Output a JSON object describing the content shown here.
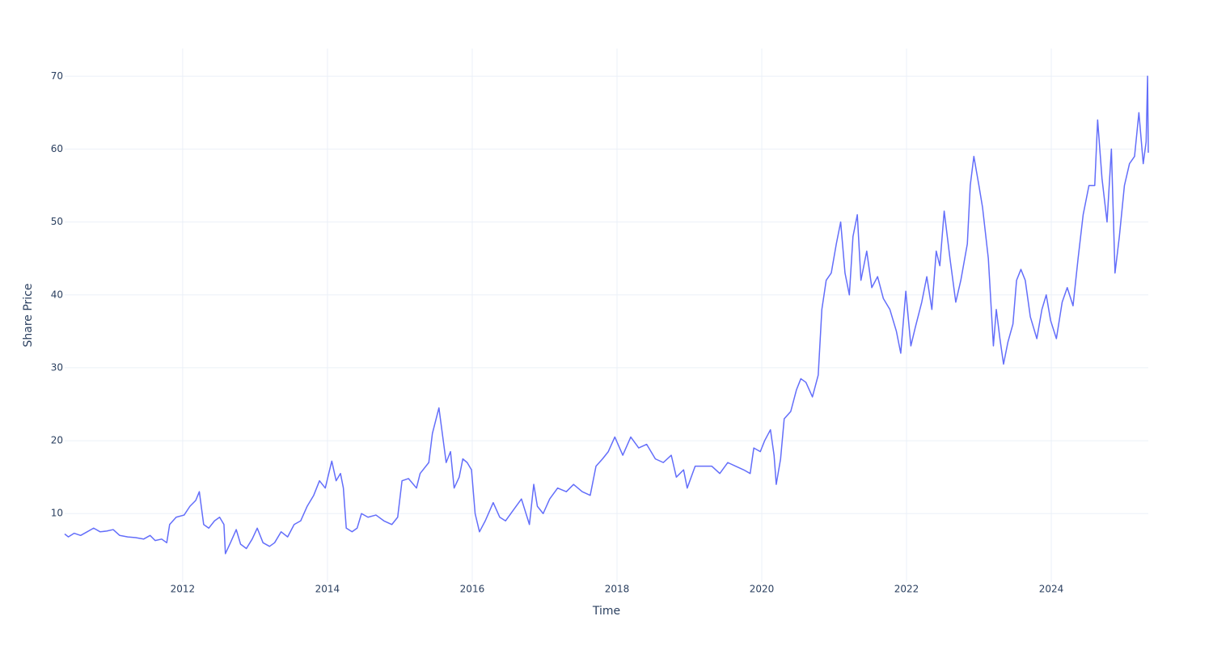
{
  "chart_data": {
    "type": "line",
    "x_label": "Time",
    "y_label": "Share Price",
    "color": "#636efa",
    "grid": true,
    "xlim": [
      2010.37,
      2025.34
    ],
    "ylim": [
      0.6,
      73.8
    ],
    "xticks": [
      2012,
      2014,
      2016,
      2018,
      2020,
      2022,
      2024
    ],
    "yticks": [
      10,
      20,
      30,
      40,
      50,
      60,
      70
    ],
    "x": [
      2010.37,
      2010.42,
      2010.5,
      2010.59,
      2010.68,
      2010.77,
      2010.86,
      2010.95,
      2011.04,
      2011.13,
      2011.24,
      2011.35,
      2011.46,
      2011.55,
      2011.62,
      2011.71,
      2011.78,
      2011.82,
      2011.91,
      2012.02,
      2012.1,
      2012.18,
      2012.23,
      2012.29,
      2012.36,
      2012.44,
      2012.51,
      2012.57,
      2012.59,
      2012.66,
      2012.74,
      2012.8,
      2012.88,
      2012.96,
      2013.03,
      2013.11,
      2013.2,
      2013.27,
      2013.36,
      2013.45,
      2013.54,
      2013.63,
      2013.72,
      2013.81,
      2013.89,
      2013.97,
      2014.03,
      2014.06,
      2014.12,
      2014.18,
      2014.22,
      2014.26,
      2014.34,
      2014.41,
      2014.47,
      2014.56,
      2014.67,
      2014.78,
      2014.89,
      2014.97,
      2015.03,
      2015.12,
      2015.23,
      2015.28,
      2015.4,
      2015.45,
      2015.54,
      2015.6,
      2015.64,
      2015.7,
      2015.75,
      2015.82,
      2015.87,
      2015.93,
      2015.99,
      2016.04,
      2016.1,
      2016.18,
      2016.29,
      2016.38,
      2016.46,
      2016.57,
      2016.68,
      2016.79,
      2016.85,
      2016.9,
      2016.98,
      2017.07,
      2017.18,
      2017.3,
      2017.4,
      2017.52,
      2017.63,
      2017.71,
      2017.8,
      2017.88,
      2017.97,
      2018.08,
      2018.19,
      2018.3,
      2018.41,
      2018.53,
      2018.64,
      2018.75,
      2018.82,
      2018.92,
      2018.97,
      2019.08,
      2019.2,
      2019.31,
      2019.42,
      2019.53,
      2019.64,
      2019.75,
      2019.84,
      2019.89,
      2019.98,
      2020.04,
      2020.12,
      2020.17,
      2020.2,
      2020.26,
      2020.31,
      2020.4,
      2020.48,
      2020.54,
      2020.61,
      2020.7,
      2020.78,
      2020.83,
      2020.89,
      2020.96,
      2021.03,
      2021.09,
      2021.15,
      2021.21,
      2021.26,
      2021.32,
      2021.37,
      2021.45,
      2021.52,
      2021.6,
      2021.68,
      2021.77,
      2021.86,
      2021.92,
      2021.99,
      2022.06,
      2022.12,
      2022.21,
      2022.28,
      2022.35,
      2022.41,
      2022.46,
      2022.52,
      2022.6,
      2022.68,
      2022.75,
      2022.84,
      2022.88,
      2022.93,
      2023.0,
      2023.05,
      2023.13,
      2023.2,
      2023.24,
      2023.29,
      2023.34,
      2023.4,
      2023.47,
      2023.52,
      2023.58,
      2023.64,
      2023.71,
      2023.8,
      2023.87,
      2023.93,
      2023.99,
      2024.07,
      2024.15,
      2024.22,
      2024.3,
      2024.37,
      2024.44,
      2024.52,
      2024.6,
      2024.64,
      2024.7,
      2024.77,
      2024.83,
      2024.88,
      2024.94,
      2025.01,
      2025.08,
      2025.15,
      2025.21,
      2025.27,
      2025.31,
      2025.33,
      2025.34
    ],
    "values": [
      7.2,
      6.8,
      7.3,
      7.0,
      7.5,
      8.0,
      7.5,
      7.6,
      7.8,
      7.0,
      6.8,
      6.7,
      6.5,
      7.0,
      6.3,
      6.5,
      6.0,
      8.5,
      9.5,
      9.8,
      11.0,
      11.8,
      13.0,
      8.5,
      8.0,
      9.0,
      9.5,
      8.5,
      4.5,
      6.0,
      7.8,
      5.8,
      5.2,
      6.5,
      8.0,
      6.0,
      5.5,
      6.0,
      7.5,
      6.8,
      8.5,
      9.0,
      11.0,
      12.5,
      14.5,
      13.5,
      16.0,
      17.2,
      14.5,
      15.5,
      13.5,
      8.0,
      7.5,
      8.0,
      10.0,
      9.5,
      9.8,
      9.0,
      8.5,
      9.5,
      14.5,
      14.8,
      13.5,
      15.5,
      17.0,
      21.0,
      24.5,
      20.0,
      17.0,
      18.5,
      13.5,
      15.0,
      17.5,
      17.0,
      16.0,
      10.0,
      7.5,
      9.0,
      11.5,
      9.5,
      9.0,
      10.5,
      12.0,
      8.5,
      14.0,
      11.0,
      10.0,
      12.0,
      13.5,
      13.0,
      14.0,
      13.0,
      12.5,
      16.5,
      17.5,
      18.5,
      20.5,
      18.0,
      20.5,
      19.0,
      19.5,
      17.5,
      17.0,
      18.0,
      15.0,
      16.0,
      13.5,
      16.5,
      16.5,
      16.5,
      15.5,
      17.0,
      16.5,
      16.0,
      15.5,
      19.0,
      18.5,
      20.0,
      21.5,
      18.0,
      14.0,
      17.5,
      23.0,
      24.0,
      27.0,
      28.5,
      28.0,
      26.0,
      29.0,
      38.0,
      42.0,
      43.0,
      47.0,
      50.0,
      43.0,
      40.0,
      48.0,
      51.0,
      42.0,
      46.0,
      41.0,
      42.5,
      39.5,
      38.0,
      35.0,
      32.0,
      40.5,
      33.0,
      35.5,
      39.0,
      42.5,
      38.0,
      46.0,
      44.0,
      51.5,
      45.0,
      39.0,
      42.0,
      47.0,
      55.0,
      59.0,
      55.0,
      52.0,
      45.0,
      33.0,
      38.0,
      34.0,
      30.5,
      33.5,
      36.0,
      42.0,
      43.5,
      42.0,
      37.0,
      34.0,
      38.0,
      40.0,
      36.5,
      34.0,
      39.0,
      41.0,
      38.5,
      45.0,
      51.0,
      55.0,
      55.0,
      64.0,
      56.0,
      50.0,
      60.0,
      43.0,
      48.0,
      55.0,
      58.0,
      59.0,
      65.0,
      58.0,
      61.0,
      70.0,
      59.5
    ]
  }
}
